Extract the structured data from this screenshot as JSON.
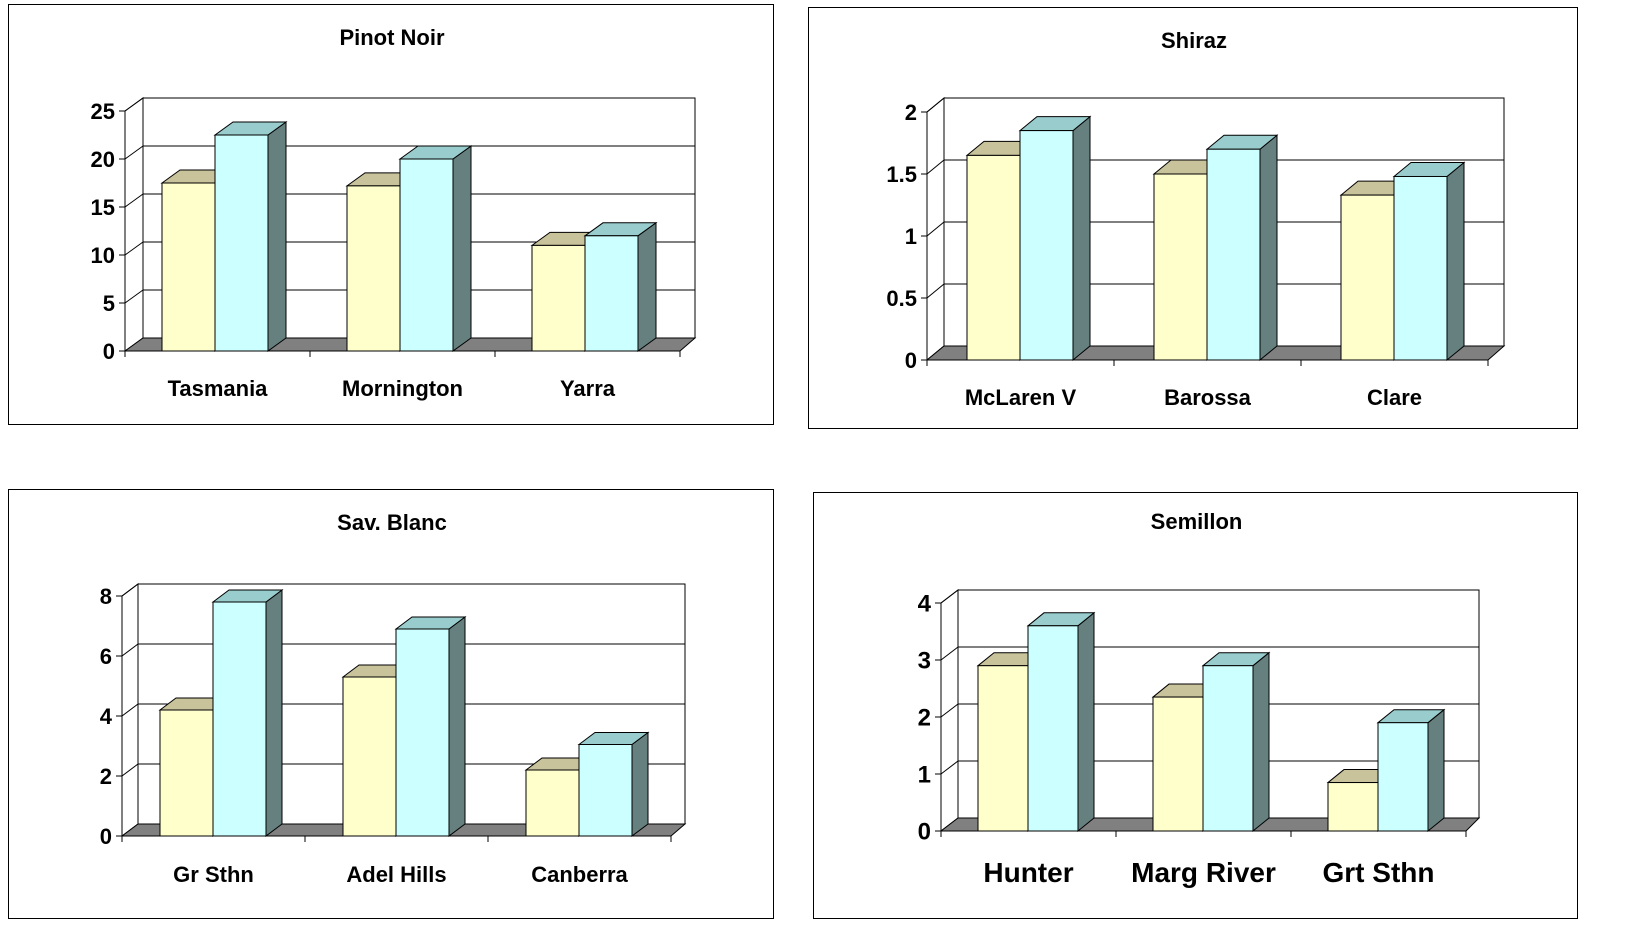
{
  "chart_data": [
    {
      "type": "bar",
      "title": "Pinot Noir",
      "categories": [
        "Tasmania",
        "Mornington",
        "Yarra"
      ],
      "series": [
        {
          "values": [
            17.5,
            17.2,
            11
          ]
        },
        {
          "values": [
            22.5,
            20,
            12
          ]
        }
      ],
      "ylim": [
        0,
        25
      ],
      "yticks": [
        "0",
        "5",
        "10",
        "15",
        "20",
        "25"
      ],
      "grid": true,
      "colors": {
        "front_a": "#FFFFCC",
        "top_a": "#C8C39B",
        "front_b": "#CCFFFF",
        "top_b": "#99CCCC",
        "side": "#668080",
        "floor": "#808080"
      }
    },
    {
      "type": "bar",
      "title": "Shiraz",
      "categories": [
        "McLaren V",
        "Barossa",
        "Clare"
      ],
      "series": [
        {
          "values": [
            1.65,
            1.5,
            1.33
          ]
        },
        {
          "values": [
            1.85,
            1.7,
            1.48
          ]
        }
      ],
      "ylim": [
        0,
        2
      ],
      "yticks": [
        "0",
        "0.5",
        "1",
        "1.5",
        "2"
      ],
      "grid": true,
      "colors": {
        "front_a": "#FFFFCC",
        "top_a": "#C8C39B",
        "front_b": "#CCFFFF",
        "top_b": "#99CCCC",
        "side": "#668080",
        "floor": "#808080"
      }
    },
    {
      "type": "bar",
      "title": "Sav. Blanc",
      "categories": [
        "Gr Sthn",
        "Adel Hills",
        "Canberra"
      ],
      "series": [
        {
          "values": [
            4.2,
            5.3,
            2.2
          ]
        },
        {
          "values": [
            7.8,
            6.9,
            3.05
          ]
        }
      ],
      "ylim": [
        0,
        8
      ],
      "yticks": [
        "0",
        "2",
        "4",
        "6",
        "8"
      ],
      "grid": true,
      "colors": {
        "front_a": "#FFFFCC",
        "top_a": "#C8C39B",
        "front_b": "#CCFFFF",
        "top_b": "#99CCCC",
        "side": "#668080",
        "floor": "#808080"
      }
    },
    {
      "type": "bar",
      "title": "Semillon",
      "categories": [
        "Hunter",
        "Marg River",
        "Grt Sthn"
      ],
      "series": [
        {
          "values": [
            2.9,
            2.35,
            0.85
          ]
        },
        {
          "values": [
            3.6,
            2.9,
            1.9
          ]
        }
      ],
      "ylim": [
        0,
        4
      ],
      "yticks": [
        "0",
        "1",
        "2",
        "3",
        "4"
      ],
      "grid": true,
      "colors": {
        "front_a": "#FFFFCC",
        "top_a": "#C8C39B",
        "front_b": "#CCFFFF",
        "top_b": "#99CCCC",
        "side": "#668080",
        "floor": "#808080"
      }
    }
  ]
}
